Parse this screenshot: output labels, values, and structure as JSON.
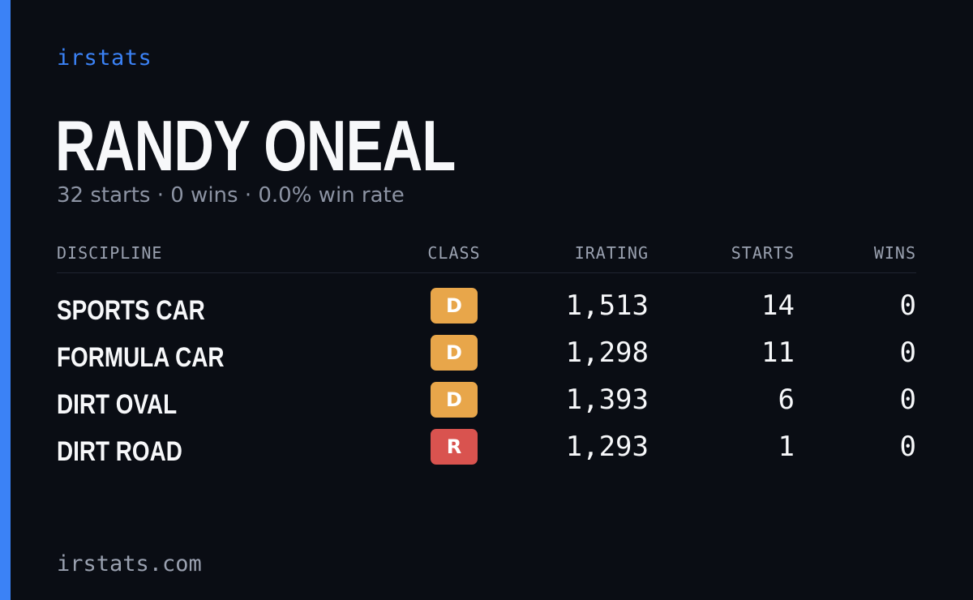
{
  "brand": "irstats",
  "driver": {
    "name": "RANDY ONEAL",
    "summary": "32 starts · 0 wins · 0.0% win rate"
  },
  "table": {
    "headers": {
      "discipline": "DISCIPLINE",
      "class": "CLASS",
      "irating": "IRATING",
      "starts": "STARTS",
      "wins": "WINS"
    },
    "rows": [
      {
        "discipline": "SPORTS CAR",
        "class": "D",
        "irating": "1,513",
        "starts": "14",
        "wins": "0"
      },
      {
        "discipline": "FORMULA CAR",
        "class": "D",
        "irating": "1,298",
        "starts": "11",
        "wins": "0"
      },
      {
        "discipline": "DIRT OVAL",
        "class": "D",
        "irating": "1,393",
        "starts": "6",
        "wins": "0"
      },
      {
        "discipline": "DIRT ROAD",
        "class": "R",
        "irating": "1,293",
        "starts": "1",
        "wins": "0"
      }
    ]
  },
  "footer": "irstats.com",
  "colors": {
    "background": "#0a0d14",
    "accent": "#3b82f6",
    "class_d": "#e8a64a",
    "class_r": "#d9534f"
  }
}
